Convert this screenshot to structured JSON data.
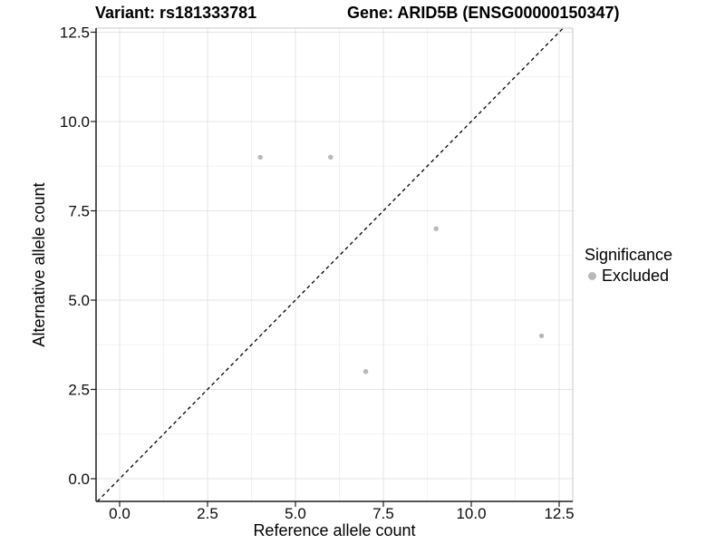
{
  "chart_data": {
    "type": "scatter",
    "title_left": "Variant: rs181333781",
    "title_right": "Gene: ARID5B (ENSG00000150347)",
    "xlabel": "Reference allele count",
    "ylabel": "Alternative allele count",
    "x_tick_labels": [
      "0.0",
      "2.5",
      "5.0",
      "7.5",
      "10.0",
      "12.5"
    ],
    "y_tick_labels": [
      "0.0",
      "2.5",
      "5.0",
      "7.5",
      "10.0",
      "12.5"
    ],
    "x_tick_values": [
      0,
      2.5,
      5,
      7.5,
      10,
      12.5
    ],
    "y_tick_values": [
      0,
      2.5,
      5,
      7.5,
      10,
      12.5
    ],
    "x_minor_tick_values": [
      1.25,
      3.75,
      6.25,
      8.75,
      11.25
    ],
    "y_minor_tick_values": [
      1.25,
      3.75,
      6.25,
      8.75,
      11.25
    ],
    "xlim": [
      -0.67,
      12.89
    ],
    "ylim": [
      -0.635,
      12.61
    ],
    "grid": "major+minor",
    "points": [
      {
        "x": 4,
        "y": 9,
        "significance": "Excluded"
      },
      {
        "x": 6,
        "y": 9,
        "significance": "Excluded"
      },
      {
        "x": 7,
        "y": 3,
        "significance": "Excluded"
      },
      {
        "x": 9,
        "y": 7,
        "significance": "Excluded"
      },
      {
        "x": 12,
        "y": 4,
        "significance": "Excluded"
      }
    ],
    "point_color": "#b8b8b8",
    "reference_line": {
      "type": "identity",
      "slope": 1,
      "intercept": 0,
      "style": "dashed",
      "color": "#000000"
    },
    "legend": {
      "position": "right",
      "title": "Significance",
      "items": [
        {
          "label": "Excluded",
          "color": "#b8b8b8"
        }
      ]
    },
    "colors": {
      "grid_major": "#e4e4e4",
      "grid_minor": "#f2f2f2",
      "panel_border": "#d3d3d3",
      "axis_line": "#1f1f1f",
      "tick_text": "#0d0d0d"
    }
  }
}
